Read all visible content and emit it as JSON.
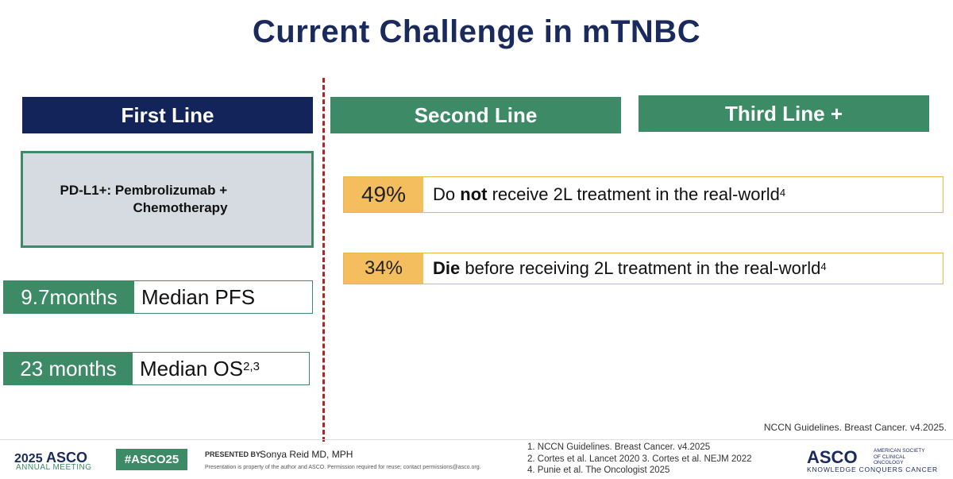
{
  "title": "Current Challenge in mTNBC",
  "headers": {
    "first": "First Line",
    "second": "Second Line",
    "third": "Third Line +"
  },
  "first_line": {
    "pdl1_line1": "PD-L1+: Pembrolizumab +",
    "pdl1_line2": "Chemotherapy",
    "pfs_value": "9.7months",
    "pfs_label": "Median PFS",
    "os_value": "23 months",
    "os_label": "Median OS",
    "os_sup": "2,3"
  },
  "second_line": {
    "fact1_pct": "49%",
    "fact1_pre": "Do ",
    "fact1_bold": "not",
    "fact1_post": " receive 2L treatment in the real-world",
    "fact1_sup": "4",
    "fact2_pct": "34%",
    "fact2_bold": "Die",
    "fact2_post": " before receiving 2L treatment in the real-world",
    "fact2_sup": "4"
  },
  "source_note": "NCCN Guidelines. Breast Cancer. v4.2025.",
  "footer": {
    "meeting_year": "2025",
    "meeting_org": "ASCO",
    "meeting_name": "ANNUAL MEETING",
    "hashtag": "#ASCO25",
    "presented_by_label": "PRESENTED BY:",
    "presenter": "Sonya Reid MD, MPH",
    "property_note": "Presentation is property of the author and ASCO. Permission required for reuse; contact permissions@asco.org.",
    "refs": [
      "1. NCCN Guidelines. Breast Cancer. v4.2025",
      "2. Cortes et al. Lancet 2020 3. Cortes et al. NEJM 2022",
      "4. Punie et al. The Oncologist 2025"
    ],
    "asco_logo": "ASCO",
    "asco_full": "AMERICAN SOCIETY OF CLINICAL ONCOLOGY",
    "asco_tagline": "KNOWLEDGE CONQUERS CANCER"
  },
  "colors": {
    "navy": "#13245a",
    "green": "#3c8a66",
    "gold": "#f4bd5e",
    "divider": "#a52a2a"
  }
}
